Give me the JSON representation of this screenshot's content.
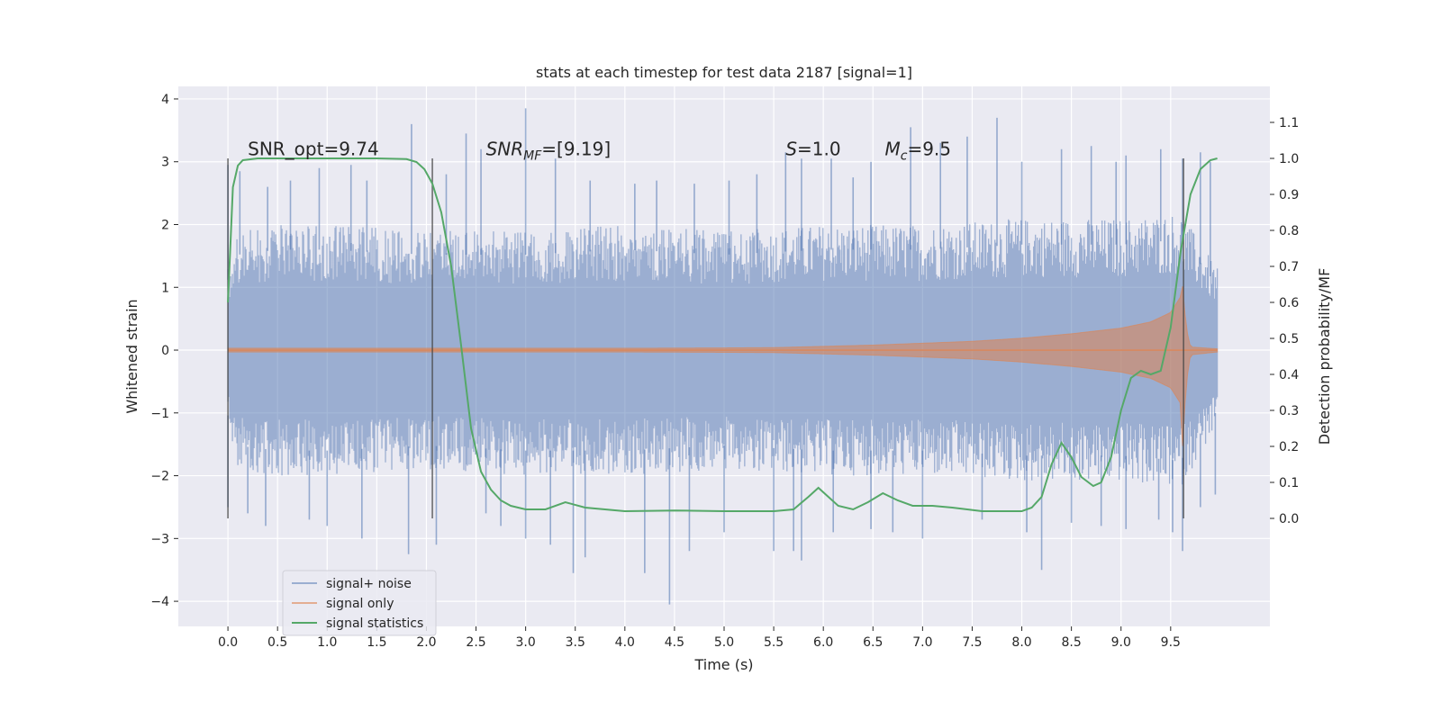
{
  "chart_data": {
    "type": "line",
    "title": "stats at each timestep for test data 2187 [signal=1]",
    "xlabel": "Time (s)",
    "ylabel": "Whitened strain",
    "ylabel_right": "Detection probability/MF",
    "xlim": [
      -0.5,
      10.5
    ],
    "ylim": [
      -4.4,
      4.2
    ],
    "ylim_right": [
      -0.3,
      1.2
    ],
    "x_ticks": [
      0.0,
      0.5,
      1.0,
      1.5,
      2.0,
      2.5,
      3.0,
      3.5,
      4.0,
      4.5,
      5.0,
      5.5,
      6.0,
      6.5,
      7.0,
      7.5,
      8.0,
      8.5,
      9.0,
      9.5
    ],
    "x_tick_labels": [
      "0.0",
      "0.5",
      "1.0",
      "1.5",
      "2.0",
      "2.5",
      "3.0",
      "3.5",
      "4.0",
      "4.5",
      "5.0",
      "5.5",
      "6.0",
      "6.5",
      "7.0",
      "7.5",
      "8.0",
      "8.5",
      "9.0",
      "9.5"
    ],
    "y_ticks": [
      4,
      3,
      2,
      1,
      0,
      -1,
      -2,
      -3,
      -4
    ],
    "y_tick_labels": [
      "4",
      "3",
      "2",
      "1",
      "0",
      "−1",
      "−2",
      "−3",
      "−4"
    ],
    "y_right_ticks": [
      1.1,
      1.0,
      0.9,
      0.8,
      0.7,
      0.6,
      0.5,
      0.4,
      0.3,
      0.2,
      0.1,
      0.0
    ],
    "y_right_tick_labels": [
      "1.1",
      "1.0",
      "0.9",
      "0.8",
      "0.7",
      "0.6",
      "0.5",
      "0.4",
      "0.3",
      "0.2",
      "0.1",
      "0.0"
    ],
    "grid": true,
    "legend_placement": "lower-left",
    "annotations": [
      {
        "parts": [
          {
            "t": "SNR_opt=9.74",
            "style": "normal"
          }
        ],
        "x": 0.2,
        "y": 3.1
      },
      {
        "parts": [
          {
            "t": "SNR",
            "style": "italic"
          },
          {
            "t": "MF",
            "style": "italic-sub"
          },
          {
            "t": "=[9.19]",
            "style": "normal"
          }
        ],
        "x": 2.6,
        "y": 3.1
      },
      {
        "parts": [
          {
            "t": "S",
            "style": "italic"
          },
          {
            "t": "=1.0",
            "style": "normal"
          }
        ],
        "x": 5.62,
        "y": 3.1
      },
      {
        "parts": [
          {
            "t": "M",
            "style": "italic"
          },
          {
            "t": "c",
            "style": "italic-sub"
          },
          {
            "t": "=9.5",
            "style": "normal"
          }
        ],
        "x": 6.62,
        "y": 3.1
      }
    ],
    "vertical_markers": {
      "x": [
        0.0,
        2.06,
        9.63
      ],
      "y_right_range": [
        0.0,
        1.0
      ]
    },
    "series": [
      {
        "name": "signal+ noise",
        "color": "#4c72b0",
        "kind": "noise_band",
        "x_range": [
          0.0,
          9.97
        ],
        "typical_upper": [
          [
            0.0,
            1.4
          ],
          [
            0.1,
            1.9
          ],
          [
            0.5,
            2.0
          ],
          [
            1.0,
            2.0
          ],
          [
            2.0,
            1.9
          ],
          [
            3.0,
            1.9
          ],
          [
            4.0,
            2.0
          ],
          [
            5.0,
            1.9
          ],
          [
            6.0,
            2.0
          ],
          [
            7.0,
            2.0
          ],
          [
            8.0,
            2.1
          ],
          [
            9.0,
            2.1
          ],
          [
            9.6,
            2.2
          ],
          [
            9.97,
            1.3
          ]
        ],
        "typical_lower": [
          [
            0.0,
            -1.3
          ],
          [
            0.1,
            -1.9
          ],
          [
            0.5,
            -2.0
          ],
          [
            1.0,
            -2.0
          ],
          [
            2.0,
            -1.9
          ],
          [
            3.0,
            -2.0
          ],
          [
            4.0,
            -2.0
          ],
          [
            5.0,
            -1.9
          ],
          [
            6.0,
            -2.0
          ],
          [
            7.0,
            -2.0
          ],
          [
            8.0,
            -2.1
          ],
          [
            9.0,
            -2.1
          ],
          [
            9.6,
            -2.2
          ],
          [
            9.97,
            -1.2
          ]
        ],
        "peaks_upper": [
          [
            0.0,
            2.95
          ],
          [
            0.12,
            2.85
          ],
          [
            0.4,
            2.6
          ],
          [
            0.63,
            2.7
          ],
          [
            0.92,
            2.9
          ],
          [
            1.24,
            2.95
          ],
          [
            1.4,
            2.7
          ],
          [
            1.85,
            3.6
          ],
          [
            2.2,
            2.8
          ],
          [
            2.4,
            3.45
          ],
          [
            2.55,
            3.2
          ],
          [
            3.0,
            3.85
          ],
          [
            3.3,
            3.05
          ],
          [
            3.65,
            2.7
          ],
          [
            4.1,
            2.65
          ],
          [
            4.32,
            2.7
          ],
          [
            4.7,
            2.65
          ],
          [
            5.05,
            2.7
          ],
          [
            5.33,
            2.8
          ],
          [
            5.62,
            3.15
          ],
          [
            5.78,
            3.05
          ],
          [
            6.08,
            3.05
          ],
          [
            6.3,
            2.75
          ],
          [
            6.48,
            3.0
          ],
          [
            6.88,
            3.55
          ],
          [
            7.18,
            3.3
          ],
          [
            7.45,
            3.4
          ],
          [
            7.75,
            3.7
          ],
          [
            8.0,
            3.0
          ],
          [
            8.4,
            3.2
          ],
          [
            8.7,
            3.25
          ],
          [
            8.95,
            3.0
          ],
          [
            9.05,
            3.1
          ],
          [
            9.4,
            3.2
          ],
          [
            9.62,
            3.05
          ],
          [
            9.8,
            3.15
          ],
          [
            9.9,
            3.0
          ]
        ],
        "peaks_lower": [
          [
            0.0,
            -2.5
          ],
          [
            0.2,
            -2.6
          ],
          [
            0.38,
            -2.8
          ],
          [
            0.82,
            -2.7
          ],
          [
            1.0,
            -2.8
          ],
          [
            1.35,
            -3.0
          ],
          [
            1.82,
            -3.25
          ],
          [
            2.1,
            -3.1
          ],
          [
            2.6,
            -2.6
          ],
          [
            2.75,
            -2.8
          ],
          [
            3.0,
            -3.0
          ],
          [
            3.25,
            -3.1
          ],
          [
            3.48,
            -3.55
          ],
          [
            3.6,
            -3.3
          ],
          [
            4.2,
            -3.55
          ],
          [
            4.45,
            -4.05
          ],
          [
            4.65,
            -3.2
          ],
          [
            5.0,
            -2.9
          ],
          [
            5.5,
            -3.2
          ],
          [
            5.7,
            -3.2
          ],
          [
            5.78,
            -3.35
          ],
          [
            6.1,
            -2.9
          ],
          [
            6.48,
            -2.85
          ],
          [
            6.7,
            -2.9
          ],
          [
            7.0,
            -3.0
          ],
          [
            7.6,
            -2.7
          ],
          [
            8.05,
            -2.9
          ],
          [
            8.2,
            -3.5
          ],
          [
            8.5,
            -2.75
          ],
          [
            8.8,
            -2.8
          ],
          [
            9.05,
            -2.85
          ],
          [
            9.38,
            -2.7
          ],
          [
            9.52,
            -2.9
          ],
          [
            9.62,
            -3.2
          ],
          [
            9.8,
            -2.5
          ],
          [
            9.95,
            -2.3
          ]
        ]
      },
      {
        "name": "signal only",
        "color": "#dd8452",
        "kind": "chirp_envelope",
        "x": [
          0.0,
          1.0,
          2.0,
          3.0,
          4.0,
          5.0,
          5.5,
          6.0,
          6.5,
          7.0,
          7.5,
          8.0,
          8.5,
          9.0,
          9.3,
          9.5,
          9.6,
          9.63,
          9.65,
          9.7,
          9.97
        ],
        "amplitude": [
          0.03,
          0.03,
          0.03,
          0.03,
          0.03,
          0.035,
          0.04,
          0.06,
          0.08,
          0.11,
          0.14,
          0.19,
          0.26,
          0.35,
          0.45,
          0.6,
          0.85,
          1.1,
          0.4,
          0.05,
          0.02
        ]
      },
      {
        "name": "signal statistics",
        "color": "#55a868",
        "kind": "line",
        "axis": "right",
        "x": [
          0.0,
          0.05,
          0.1,
          0.15,
          0.3,
          0.6,
          1.0,
          1.5,
          1.8,
          1.9,
          1.98,
          2.06,
          2.15,
          2.25,
          2.35,
          2.45,
          2.55,
          2.65,
          2.75,
          2.85,
          3.0,
          3.2,
          3.4,
          3.6,
          4.0,
          4.5,
          5.0,
          5.5,
          5.7,
          5.85,
          5.95,
          6.05,
          6.15,
          6.3,
          6.45,
          6.6,
          6.75,
          6.9,
          7.1,
          7.3,
          7.6,
          8.0,
          8.1,
          8.2,
          8.3,
          8.4,
          8.5,
          8.6,
          8.72,
          8.8,
          8.9,
          9.0,
          9.1,
          9.2,
          9.3,
          9.4,
          9.5,
          9.6,
          9.7,
          9.8,
          9.9,
          9.97
        ],
        "y": [
          0.6,
          0.92,
          0.98,
          0.995,
          1.0,
          1.0,
          1.0,
          1.0,
          0.998,
          0.99,
          0.97,
          0.93,
          0.85,
          0.7,
          0.48,
          0.25,
          0.13,
          0.08,
          0.05,
          0.035,
          0.025,
          0.025,
          0.045,
          0.03,
          0.02,
          0.022,
          0.02,
          0.02,
          0.025,
          0.06,
          0.085,
          0.06,
          0.035,
          0.025,
          0.045,
          0.07,
          0.05,
          0.035,
          0.035,
          0.03,
          0.02,
          0.02,
          0.03,
          0.06,
          0.15,
          0.21,
          0.17,
          0.115,
          0.09,
          0.1,
          0.17,
          0.3,
          0.39,
          0.41,
          0.4,
          0.41,
          0.53,
          0.74,
          0.9,
          0.97,
          0.995,
          1.0
        ]
      }
    ]
  }
}
